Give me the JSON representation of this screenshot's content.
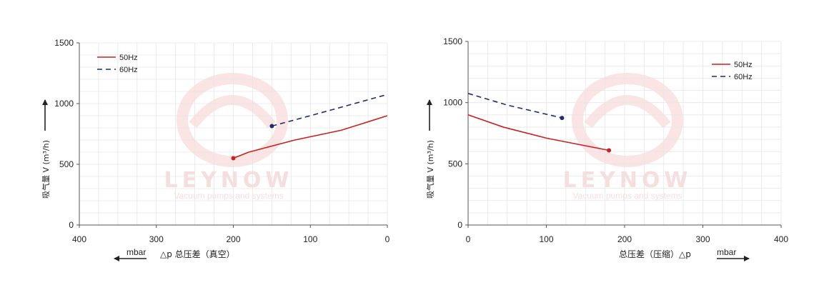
{
  "watermark": {
    "brand": "LEYNOW",
    "tagline": "Vacuum pumps and systems"
  },
  "colors": {
    "line_50": "#cc1f1f",
    "line_60": "#1f2d6e",
    "grid": "#e6e6e6",
    "axis": "#555555"
  },
  "chart_data": [
    {
      "type": "line",
      "title": "",
      "xlabel": "△p 总压差（真空）",
      "ylabel": "吸气量 V (m³/h)",
      "x_unit": "mbar",
      "x_reversed": true,
      "xlim": [
        0,
        400
      ],
      "ylim": [
        0,
        1500
      ],
      "xticks": [
        400,
        300,
        200,
        100,
        0
      ],
      "yticks": [
        0,
        500,
        1000,
        1500
      ],
      "grid": true,
      "legend_position": "top-left",
      "series": [
        {
          "name": "50Hz",
          "style": "solid",
          "color": "#cc1f1f",
          "x": [
            200,
            180,
            120,
            60,
            0
          ],
          "y": [
            550,
            600,
            700,
            780,
            900
          ],
          "marker_at_start": true
        },
        {
          "name": "60Hz",
          "style": "dashed",
          "color": "#1f2d6e",
          "x": [
            150,
            100,
            60,
            0
          ],
          "y": [
            815,
            900,
            970,
            1075
          ],
          "marker_at_start": true
        }
      ]
    },
    {
      "type": "line",
      "title": "",
      "xlabel": "总压差（压缩）△p",
      "ylabel": "吸气量 V (m³/h)",
      "x_unit": "mbar",
      "x_reversed": false,
      "xlim": [
        0,
        400
      ],
      "ylim": [
        0,
        1500
      ],
      "xticks": [
        0,
        100,
        200,
        300,
        400
      ],
      "yticks": [
        0,
        500,
        1000,
        1500
      ],
      "grid": true,
      "legend_position": "top-right",
      "series": [
        {
          "name": "50Hz",
          "style": "solid",
          "color": "#cc1f1f",
          "x": [
            0,
            45,
            100,
            180
          ],
          "y": [
            900,
            800,
            710,
            610
          ],
          "marker_at_end": true
        },
        {
          "name": "60Hz",
          "style": "dashed",
          "color": "#1f2d6e",
          "x": [
            0,
            50,
            120
          ],
          "y": [
            1075,
            980,
            875
          ],
          "marker_at_end": true
        }
      ]
    }
  ]
}
